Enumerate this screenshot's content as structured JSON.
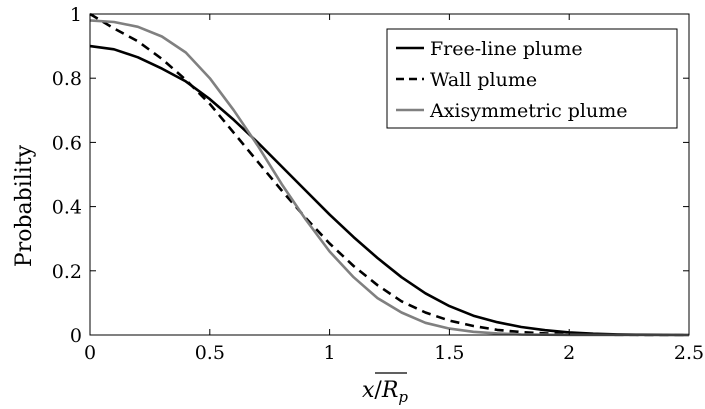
{
  "chart_data": {
    "type": "line",
    "title": "",
    "xlabel": "x/R_p",
    "xlabel_parts": {
      "numer": "x",
      "slash": "/",
      "denom": "R",
      "sub": "p"
    },
    "ylabel": "Probability",
    "xlim": [
      0,
      2.5
    ],
    "ylim": [
      0,
      1
    ],
    "xticks": [
      0,
      0.5,
      1,
      1.5,
      2,
      2.5
    ],
    "xtick_labels": [
      "0",
      "0.5",
      "1",
      "1.5",
      "2",
      "2.5"
    ],
    "yticks": [
      0,
      0.2,
      0.4,
      0.6,
      0.8,
      1
    ],
    "ytick_labels": [
      "0",
      "0.2",
      "0.4",
      "0.6",
      "0.8",
      "1"
    ],
    "grid": false,
    "legend_position": "top-right",
    "series": [
      {
        "name": "Free-line plume",
        "color": "#000000",
        "dash": "solid",
        "x": [
          0,
          0.1,
          0.2,
          0.3,
          0.4,
          0.5,
          0.6,
          0.7,
          0.8,
          0.9,
          1.0,
          1.1,
          1.2,
          1.3,
          1.4,
          1.5,
          1.6,
          1.7,
          1.8,
          1.9,
          2.0,
          2.1,
          2.2,
          2.3,
          2.4,
          2.5
        ],
        "y": [
          0.9,
          0.89,
          0.865,
          0.83,
          0.79,
          0.735,
          0.67,
          0.6,
          0.525,
          0.45,
          0.375,
          0.305,
          0.24,
          0.18,
          0.13,
          0.09,
          0.06,
          0.04,
          0.025,
          0.015,
          0.008,
          0.004,
          0.002,
          0.001,
          0.0005,
          0.0
        ]
      },
      {
        "name": "Wall plume",
        "color": "#000000",
        "dash": "dashed",
        "x": [
          0,
          0.1,
          0.2,
          0.3,
          0.4,
          0.5,
          0.6,
          0.7,
          0.8,
          0.9,
          1.0,
          1.1,
          1.2,
          1.3,
          1.4,
          1.5,
          1.6,
          1.7,
          1.8,
          1.9,
          2.0,
          2.1,
          2.2,
          2.3,
          2.4,
          2.5
        ],
        "y": [
          1.0,
          0.955,
          0.915,
          0.86,
          0.795,
          0.72,
          0.63,
          0.54,
          0.45,
          0.365,
          0.285,
          0.215,
          0.155,
          0.105,
          0.07,
          0.045,
          0.028,
          0.016,
          0.009,
          0.005,
          0.0025,
          0.0012,
          0.0006,
          0.0003,
          0.0001,
          0.0
        ]
      },
      {
        "name": "Axisymmetric plume",
        "color": "#808080",
        "dash": "solid",
        "x": [
          0,
          0.1,
          0.2,
          0.3,
          0.4,
          0.5,
          0.6,
          0.7,
          0.8,
          0.9,
          1.0,
          1.1,
          1.2,
          1.3,
          1.4,
          1.5,
          1.6,
          1.7,
          1.8,
          1.9,
          2.0,
          2.1,
          2.2,
          2.3,
          2.4,
          2.5
        ],
        "y": [
          0.98,
          0.975,
          0.96,
          0.93,
          0.88,
          0.8,
          0.7,
          0.59,
          0.47,
          0.36,
          0.26,
          0.18,
          0.115,
          0.07,
          0.038,
          0.02,
          0.01,
          0.005,
          0.002,
          0.001,
          0.0004,
          0.0001,
          0.0,
          0.0,
          0.0,
          0.0
        ]
      }
    ]
  }
}
